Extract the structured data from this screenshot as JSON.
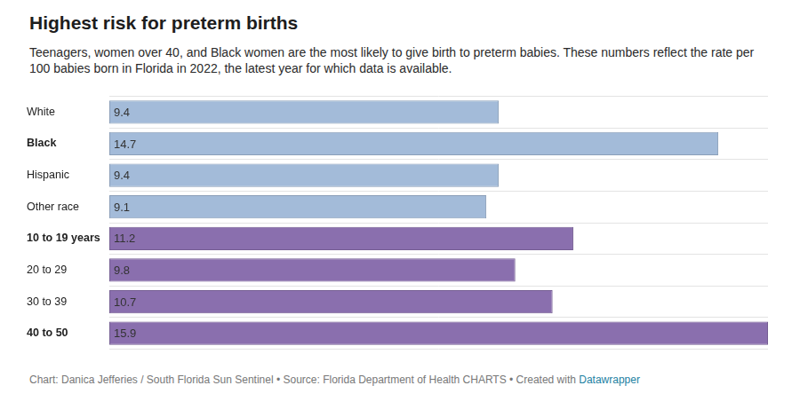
{
  "chart_data": {
    "type": "bar",
    "orientation": "horizontal",
    "title": "Highest risk for preterm births",
    "subtitle": "Teenagers, women over 40, and Black women are the most likely to give birth to preterm babies. These numbers reflect the rate per 100 babies born in Florida in 2022, the latest year for which data is available.",
    "caption": "Chart: Danica Jefferies / South Florida Sun Sentinel • Source: Florida Department of Health CHARTS • Created with",
    "caption_link": "Datawrapper",
    "categories": [
      "White",
      "Black",
      "Hispanic",
      "Other race",
      "10 to 19 years",
      "20 to 29",
      "30 to 39",
      "40 to 50"
    ],
    "values": [
      9.4,
      14.7,
      9.4,
      9.1,
      11.2,
      9.8,
      10.7,
      15.9
    ],
    "colors": [
      "#a3bbd9",
      "#a3bbd9",
      "#a3bbd9",
      "#a3bbd9",
      "#8a6fae",
      "#8a6fae",
      "#8a6fae",
      "#8a6fae"
    ],
    "xlim": [
      0,
      15.9
    ],
    "grid": true,
    "data_labels": true,
    "tick_labels": "y"
  }
}
